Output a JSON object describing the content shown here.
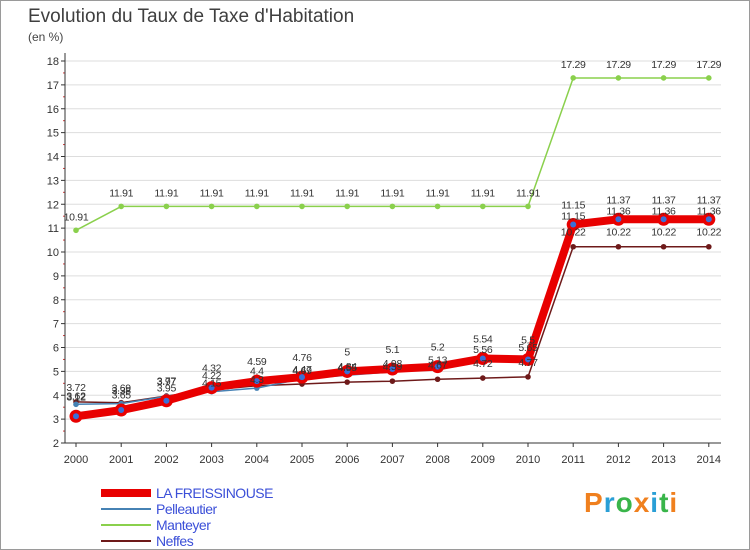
{
  "colors": {
    "series": [
      "#e80000",
      "#4682b4",
      "#8ad04c",
      "#6e1a1a"
    ],
    "markers": [
      "#3a6fd8",
      "#4682b4",
      "#8ad04c",
      "#6e1a1a"
    ],
    "grid": "#dddddd",
    "axis": "#333333",
    "text": "#333333",
    "legend_text": "#3b4fd8"
  },
  "logo": {
    "letters": [
      "P",
      "r",
      "o",
      "x",
      "i",
      "t",
      "i"
    ],
    "colors": [
      "#f0801e",
      "#2a9fd6",
      "#39b54a",
      "#f0801e",
      "#2a9fd6",
      "#39b54a",
      "#f0801e"
    ]
  },
  "chart_data": {
    "type": "line",
    "title": "Evolution du Taux de Taxe d'Habitation",
    "subtitle": "(en %)",
    "x": [
      "2000",
      "2001",
      "2002",
      "2003",
      "2004",
      "2005",
      "2006",
      "2007",
      "2008",
      "2009",
      "2010",
      "2011",
      "2012",
      "2013",
      "2014"
    ],
    "ylim": [
      2,
      18
    ],
    "yticks": [
      "2",
      "3",
      "4",
      "5",
      "6",
      "7",
      "8",
      "9",
      "10",
      "11",
      "12",
      "13",
      "14",
      "15",
      "16",
      "17",
      "18"
    ],
    "grid": "horizontal",
    "legend_position": "bottom-left",
    "series": [
      {
        "name": "LA FREISSINOUSE",
        "values": [
          3.12,
          3.38,
          3.77,
          4.32,
          4.59,
          4.76,
          5.0,
          5.1,
          5.2,
          5.54,
          5.5,
          11.15,
          11.37,
          11.37,
          11.37
        ],
        "labels": [
          "3.12",
          "3.38",
          "3.77",
          "4.32",
          "4.59",
          "4.76",
          "5",
          "5.1",
          "5.2",
          "5.54",
          "5.5",
          "11.15",
          "11.37",
          "11.37",
          "11.37"
        ]
      },
      {
        "name": "Pelleautier",
        "values": [
          3.62,
          3.65,
          3.95,
          4.15,
          4.3,
          4.69,
          4.84,
          4.98,
          5.13,
          5.56,
          5.65,
          11.15,
          11.36,
          11.36,
          11.36
        ],
        "labels": [
          "3.62",
          "3.65",
          "3.95",
          "4.15",
          "4.3",
          "4.69",
          "4.84",
          "4.98",
          "5.13",
          "5.56",
          "5.65",
          "11.15",
          "11.36",
          "11.36",
          "11.36"
        ]
      },
      {
        "name": "Manteyer",
        "values": [
          10.91,
          11.91,
          11.91,
          11.91,
          11.91,
          11.91,
          11.91,
          11.91,
          11.91,
          11.91,
          11.91,
          17.29,
          17.29,
          17.29,
          17.29
        ],
        "labels": [
          "10.91",
          "11.91",
          "11.91",
          "11.91",
          "11.91",
          "11.91",
          "11.91",
          "11.91",
          "11.91",
          "11.91",
          "11.91",
          "17.29",
          "17.29",
          "17.29",
          "17.29"
        ]
      },
      {
        "name": "Neffes",
        "values": [
          3.72,
          3.69,
          3.97,
          4.22,
          4.4,
          4.47,
          4.55,
          4.59,
          4.67,
          4.72,
          4.77,
          10.22,
          10.22,
          10.22,
          10.22
        ],
        "labels": [
          "3.72",
          "3.69",
          "3.97",
          "4.22",
          "4.4",
          "4.47",
          "4.55",
          "4.59",
          "4.67",
          "4.72",
          "4.77",
          "10.22",
          "10.22",
          "10.22",
          "10.22"
        ]
      }
    ]
  }
}
